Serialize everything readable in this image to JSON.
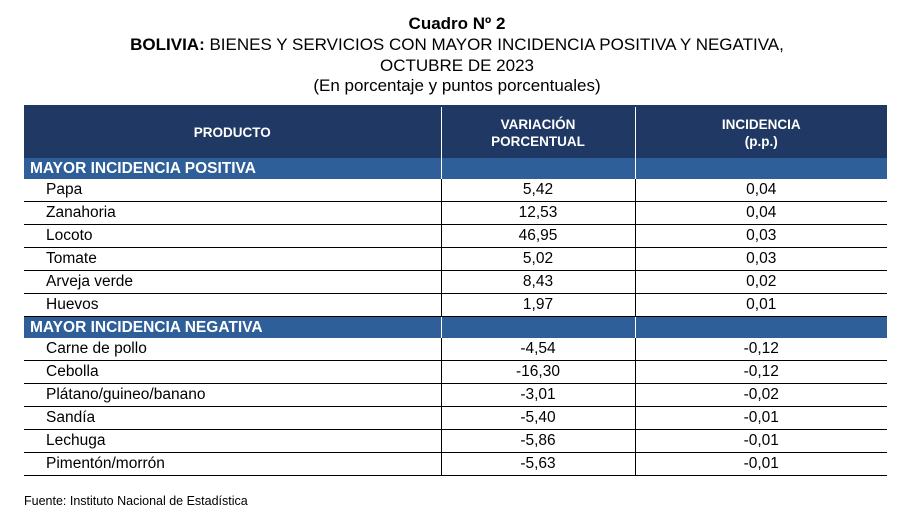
{
  "title": {
    "line1": "Cuadro Nº 2",
    "line2_bold": "BOLIVIA:",
    "line2_rest": " BIENES Y SERVICIOS CON MAYOR INCIDENCIA POSITIVA Y NEGATIVA,",
    "line3": "OCTUBRE DE 2023",
    "line4": "(En porcentaje y puntos porcentuales)"
  },
  "headers": {
    "product": "PRODUCTO",
    "variation_1": "VARIACIÓN",
    "variation_2": "PORCENTUAL",
    "incidence_1": "INCIDENCIA",
    "incidence_2": "(p.p.)"
  },
  "sections": [
    {
      "label": "MAYOR INCIDENCIA POSITIVA",
      "rows": [
        {
          "product": "Papa",
          "variation": "5,42",
          "incidence": "0,04"
        },
        {
          "product": "Zanahoria",
          "variation": "12,53",
          "incidence": "0,04"
        },
        {
          "product": "Locoto",
          "variation": "46,95",
          "incidence": "0,03"
        },
        {
          "product": "Tomate",
          "variation": "5,02",
          "incidence": "0,03"
        },
        {
          "product": "Arveja verde",
          "variation": "8,43",
          "incidence": "0,02"
        },
        {
          "product": "Huevos",
          "variation": "1,97",
          "incidence": "0,01"
        }
      ]
    },
    {
      "label": "MAYOR INCIDENCIA NEGATIVA",
      "rows": [
        {
          "product": "Carne de pollo",
          "variation": "-4,54",
          "incidence": "-0,12"
        },
        {
          "product": "Cebolla",
          "variation": "-16,30",
          "incidence": "-0,12"
        },
        {
          "product": "Plátano/guineo/banano",
          "variation": "-3,01",
          "incidence": "-0,02"
        },
        {
          "product": "Sandía",
          "variation": "-5,40",
          "incidence": "-0,01"
        },
        {
          "product": "Lechuga",
          "variation": "-5,86",
          "incidence": "-0,01"
        },
        {
          "product": "Pimentón/morrón",
          "variation": "-5,63",
          "incidence": "-0,01"
        }
      ]
    }
  ],
  "source": "Fuente: Instituto Nacional de Estadística"
}
